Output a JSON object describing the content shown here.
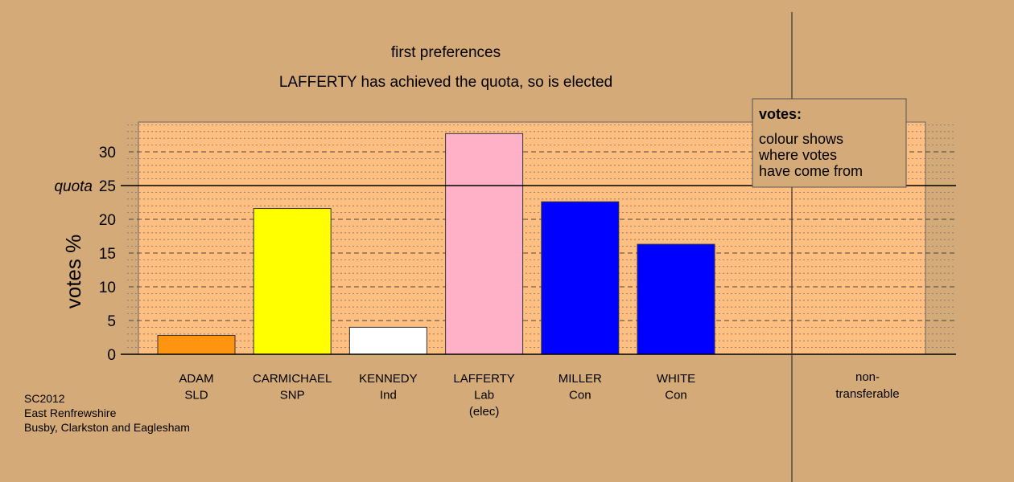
{
  "chart_data": {
    "type": "bar",
    "title": "first preferences",
    "subtitle": "LAFFERTY has achieved the quota, so is elected",
    "ylabel": "votes %",
    "ylim": [
      0,
      35
    ],
    "yticks": [
      0,
      5,
      10,
      15,
      20,
      30
    ],
    "grid": true,
    "quota": {
      "label": "quota",
      "value": 25
    },
    "categories": [
      {
        "name": "ADAM",
        "party": "SLD",
        "note": "",
        "value": 2.8,
        "color": "#ff9410"
      },
      {
        "name": "CARMICHAEL",
        "party": "SNP",
        "note": "",
        "value": 21.6,
        "color": "#ffff00"
      },
      {
        "name": "KENNEDY",
        "party": "Ind",
        "note": "",
        "value": 4.0,
        "color": "#ffffff"
      },
      {
        "name": "LAFFERTY",
        "party": "Lab",
        "note": "(elec)",
        "value": 32.7,
        "color": "#ffb1c8"
      },
      {
        "name": "MILLER",
        "party": "Con",
        "note": "",
        "value": 22.6,
        "color": "#0000ff"
      },
      {
        "name": "WHITE",
        "party": "Con",
        "note": "",
        "value": 16.3,
        "color": "#0000ff"
      }
    ],
    "extra_category": {
      "line1": "non-",
      "line2": "transferable",
      "value": 0
    },
    "legend": {
      "title": "votes:",
      "lines": [
        "colour shows",
        "where votes",
        "have come from"
      ],
      "placement": "top-right"
    }
  },
  "footer": {
    "line1": "SC2012",
    "line2": "East Renfrewshire",
    "line3": "Busby, Clarkston and Eaglesham"
  },
  "colors": {
    "background": "#d4aa78",
    "plot_area": "#ffbf80",
    "grid": "#555555"
  }
}
